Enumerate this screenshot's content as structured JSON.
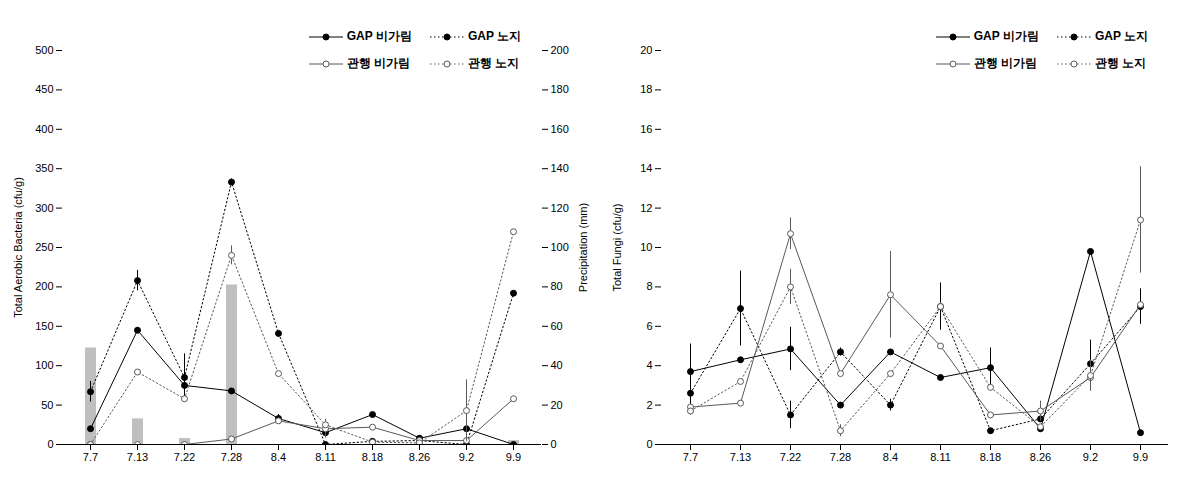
{
  "chart_data": [
    {
      "type": "line",
      "categories": [
        "7.7",
        "7.13",
        "7.22",
        "7.28",
        "8.4",
        "8.11",
        "8.18",
        "8.26",
        "9.2",
        "9.9"
      ],
      "ylabel": "Total Aerobic Bacteria (cfu/g)",
      "ylim": [
        0,
        500
      ],
      "yticks": [
        0,
        50,
        100,
        150,
        200,
        250,
        300,
        350,
        400,
        450,
        500
      ],
      "y2label": "Precipitation (mm)",
      "y2lim": [
        0,
        200
      ],
      "y2ticks": [
        0,
        20,
        40,
        60,
        80,
        100,
        120,
        140,
        160,
        180,
        200
      ],
      "legend": "top-right",
      "series": [
        {
          "type": "bar",
          "axis": "y2",
          "color": "#bfbfbf",
          "values": [
            49,
            13,
            3,
            81,
            0,
            0,
            0,
            0,
            0,
            2
          ]
        },
        {
          "name": "GAP 비가림",
          "color": "#000000",
          "marker": "filled_circle",
          "line_style": "solid",
          "values": [
            20,
            145,
            75,
            68,
            33,
            15,
            38,
            8,
            20,
            0
          ],
          "errors": [
            null,
            3,
            null,
            null,
            5,
            null,
            3,
            null,
            null,
            null
          ]
        },
        {
          "name": "GAP 노지",
          "color": "#000000",
          "marker": "filled_circle",
          "line_style": "dotted",
          "values": [
            67,
            208,
            85,
            333,
            141,
            0,
            4,
            5,
            0,
            192
          ],
          "errors": [
            13,
            13,
            30,
            4,
            null,
            null,
            null,
            null,
            null,
            null
          ]
        },
        {
          "name": "관행 비가림",
          "color": "#595959",
          "marker": "open_circle",
          "line_style": "solid",
          "values": [
            0,
            0,
            0,
            7,
            30,
            20,
            22,
            5,
            5,
            58
          ],
          "errors": [
            null,
            null,
            null,
            null,
            null,
            12,
            null,
            null,
            null,
            null
          ]
        },
        {
          "name": "관행 노지",
          "color": "#595959",
          "marker": "open_circle",
          "line_style": "dotted",
          "values": [
            0,
            92,
            58,
            240,
            90,
            25,
            3,
            2,
            43,
            270
          ],
          "errors": [
            null,
            null,
            null,
            12,
            null,
            null,
            null,
            null,
            39,
            null
          ]
        }
      ]
    },
    {
      "type": "line",
      "categories": [
        "7.7",
        "7.13",
        "7.22",
        "7.28",
        "8.4",
        "8.11",
        "8.18",
        "8.26",
        "9.2",
        "9.9"
      ],
      "ylabel": "Total Fungi (cfu/g)",
      "ylim": [
        0,
        20
      ],
      "yticks": [
        0,
        2,
        4,
        6,
        8,
        10,
        12,
        14,
        16,
        18,
        20
      ],
      "legend": "top-right",
      "series": [
        {
          "name": "GAP 비가림",
          "color": "#000000",
          "marker": "filled_circle",
          "line_style": "solid",
          "values": [
            3.7,
            4.3,
            4.85,
            2.0,
            4.7,
            3.4,
            3.9,
            0.8,
            9.8,
            0.6
          ],
          "errors": [
            1.4,
            null,
            1.1,
            null,
            null,
            null,
            1.0,
            null,
            null,
            null
          ]
        },
        {
          "name": "GAP 노지",
          "color": "#000000",
          "marker": "filled_circle",
          "line_style": "dotted",
          "values": [
            2.6,
            6.9,
            1.5,
            4.7,
            2.0,
            7.0,
            0.7,
            1.3,
            4.1,
            7.0
          ],
          "errors": [
            1.1,
            1.9,
            0.7,
            0.2,
            0.3,
            1.2,
            null,
            null,
            1.2,
            0.9
          ]
        },
        {
          "name": "관행 비가림",
          "color": "#595959",
          "marker": "open_circle",
          "line_style": "solid",
          "values": [
            1.9,
            2.1,
            10.7,
            3.6,
            7.6,
            5.0,
            1.5,
            1.7,
            3.4,
            7.1
          ],
          "errors": [
            null,
            null,
            0.8,
            null,
            2.2,
            null,
            null,
            0.5,
            null,
            null
          ]
        },
        {
          "name": "관행 노지",
          "color": "#595959",
          "marker": "open_circle",
          "line_style": "dotted",
          "values": [
            1.7,
            3.2,
            8.0,
            0.7,
            3.6,
            7.0,
            2.9,
            0.9,
            3.5,
            11.4
          ],
          "errors": [
            null,
            null,
            0.9,
            0.3,
            null,
            0.2,
            null,
            null,
            0.8,
            2.7
          ]
        }
      ]
    }
  ]
}
